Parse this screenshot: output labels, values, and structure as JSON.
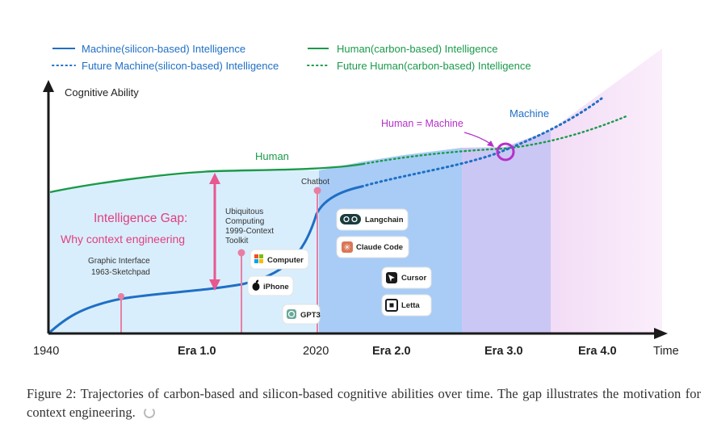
{
  "legend": {
    "machine": "Machine(silicon-based) Intelligence",
    "future_machine": "Future Machine(silicon-based) Intelligence",
    "human": "Human(carbon-based) Intelligence",
    "future_human": "Future Human(carbon-based) Intelligence"
  },
  "axes": {
    "y_label": "Cognitive Ability",
    "x_label": "Time",
    "x_ticks": [
      "1940",
      "Era 1.0",
      "2020",
      "Era 2.0",
      "Era 3.0",
      "Era 4.0"
    ]
  },
  "labels": {
    "human": "Human",
    "machine": "Machine",
    "human_equals_machine": "Human = Machine",
    "gap_title": "Intelligence Gap:",
    "gap_subtitle": "Why context engineering",
    "graphic_interface_1": "Graphic Interface",
    "graphic_interface_2": "1963-Sketchpad",
    "ubiquitous_1": "Ubiquitous",
    "ubiquitous_2": "Computing",
    "ubiquitous_3": "1999-Context",
    "ubiquitous_4": "Toolkit",
    "chatbot": "Chatbot"
  },
  "badges": {
    "computer": "Computer",
    "iphone": "iPhone",
    "gpt3": "GPT3",
    "langchain": "Langchain",
    "claude_code": "Claude Code",
    "cursor": "Cursor",
    "letta": "Letta"
  },
  "colors": {
    "machine": "#1f6fc5",
    "human": "#1a9a4a",
    "gap": "#e8578f",
    "marker": "#b530c8",
    "annotation_line": "#e87fa3",
    "era1_bg": "#d6ecfb",
    "era2_bg": "#a9cdf7",
    "era3_bg": "#c9c6f5",
    "era4_bg": "#f6e1f7"
  },
  "icons": [
    "windows-icon",
    "apple-icon",
    "openai-icon",
    "langchain-icon",
    "claude-icon",
    "cursor-icon",
    "letta-icon",
    "up-arrow-icon",
    "right-arrow-icon"
  ],
  "caption": "Figure 2: Trajectories of carbon-based and silicon-based cognitive abilities over time. The gap illustrates the motivation for context engineering."
}
